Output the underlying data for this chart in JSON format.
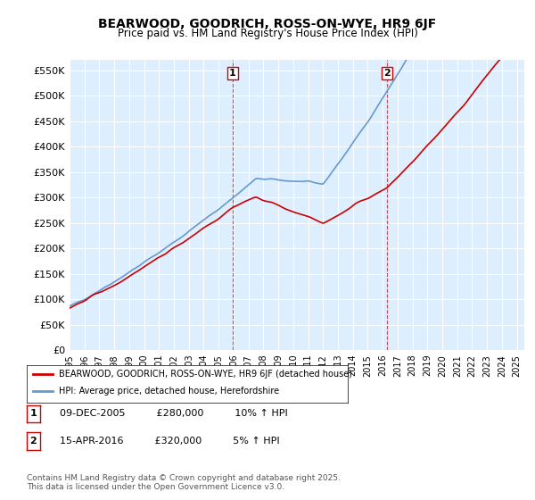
{
  "title": "BEARWOOD, GOODRICH, ROSS-ON-WYE, HR9 6JF",
  "subtitle": "Price paid vs. HM Land Registry's House Price Index (HPI)",
  "ylabel_ticks": [
    "£0",
    "£50K",
    "£100K",
    "£150K",
    "£200K",
    "£250K",
    "£300K",
    "£350K",
    "£400K",
    "£450K",
    "£500K",
    "£550K"
  ],
  "ytick_values": [
    0,
    50000,
    100000,
    150000,
    200000,
    250000,
    300000,
    350000,
    400000,
    450000,
    500000,
    550000
  ],
  "ylim": [
    0,
    570000
  ],
  "xlim_start": 1995.0,
  "xlim_end": 2025.5,
  "xtick_years": [
    1995,
    1996,
    1997,
    1998,
    1999,
    2000,
    2001,
    2002,
    2003,
    2004,
    2005,
    2006,
    2007,
    2008,
    2009,
    2010,
    2011,
    2012,
    2013,
    2014,
    2015,
    2016,
    2017,
    2018,
    2019,
    2020,
    2021,
    2022,
    2023,
    2024,
    2025
  ],
  "line1_color": "#cc0000",
  "line2_color": "#6699cc",
  "marker1_date": 2005.94,
  "marker1_label": "1",
  "marker1_value": 280000,
  "marker2_date": 2016.29,
  "marker2_label": "2",
  "marker2_value": 320000,
  "legend_line1": "BEARWOOD, GOODRICH, ROSS-ON-WYE, HR9 6JF (detached house)",
  "legend_line2": "HPI: Average price, detached house, Herefordshire",
  "table_rows": [
    [
      "1",
      "09-DEC-2005",
      "£280,000",
      "10% ↑ HPI"
    ],
    [
      "2",
      "15-APR-2016",
      "£320,000",
      "5% ↑ HPI"
    ]
  ],
  "footnote": "Contains HM Land Registry data © Crown copyright and database right 2025.\nThis data is licensed under the Open Government Licence v3.0.",
  "background_color": "#ffffff",
  "plot_bg_color": "#ddeeff"
}
